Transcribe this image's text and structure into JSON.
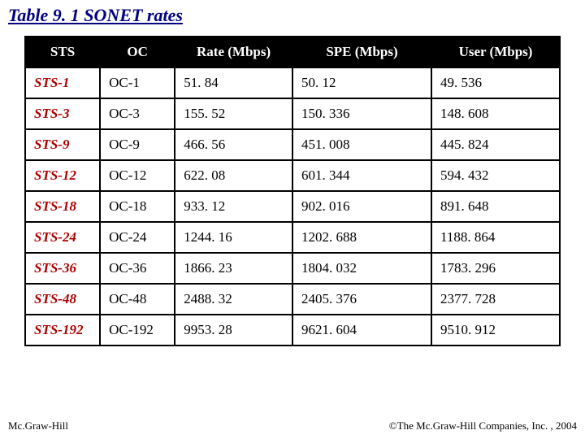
{
  "title": "Table 9. 1  SONET rates",
  "footer_left": "Mc.Graw-Hill",
  "footer_right": "©The Mc.Graw-Hill Companies, Inc. , 2004",
  "table": {
    "columns": [
      "STS",
      "OC",
      "Rate (Mbps)",
      "SPE (Mbps)",
      "User (Mbps)"
    ],
    "col_widths": [
      "14%",
      "14%",
      "22%",
      "26%",
      "24%"
    ],
    "header_bg": "#000000",
    "header_color": "#ffffff",
    "border_color": "#000000",
    "first_col_color": "#b00000",
    "rows": [
      [
        "STS-1",
        "OC-1",
        "51. 84",
        "50. 12",
        "49. 536"
      ],
      [
        "STS-3",
        "OC-3",
        "155. 52",
        "150. 336",
        "148. 608"
      ],
      [
        "STS-9",
        "OC-9",
        "466. 56",
        "451. 008",
        "445. 824"
      ],
      [
        "STS-12",
        "OC-12",
        "622. 08",
        "601. 344",
        "594. 432"
      ],
      [
        "STS-18",
        "OC-18",
        "933. 12",
        "902. 016",
        "891. 648"
      ],
      [
        "STS-24",
        "OC-24",
        "1244. 16",
        "1202. 688",
        "1188. 864"
      ],
      [
        "STS-36",
        "OC-36",
        "1866. 23",
        "1804. 032",
        "1783. 296"
      ],
      [
        "STS-48",
        "OC-48",
        "2488. 32",
        "2405. 376",
        "2377. 728"
      ],
      [
        "STS-192",
        "OC-192",
        "9953. 28",
        "9621. 604",
        "9510. 912"
      ]
    ]
  }
}
